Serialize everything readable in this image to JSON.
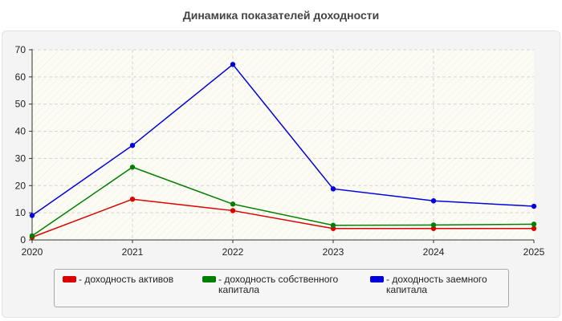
{
  "chart_data": {
    "type": "line",
    "title": "Динамика показателей доходности",
    "xlabel": "",
    "ylabel": "",
    "categories": [
      "2020",
      "2021",
      "2022",
      "2023",
      "2024",
      "2025"
    ],
    "ylim": [
      0,
      70
    ],
    "yticks": [
      0,
      10,
      20,
      30,
      40,
      50,
      60,
      70
    ],
    "grid": true,
    "legend_position": "bottom",
    "series": [
      {
        "name": "- доходность активов",
        "color": "#dd0000",
        "values": [
          1,
          15,
          10.8,
          4.2,
          4.2,
          4.2
        ]
      },
      {
        "name": "- доходность собственного капитала",
        "color": "#008000",
        "values": [
          1.5,
          26.8,
          13.2,
          5.4,
          5.5,
          5.8
        ]
      },
      {
        "name": "- доходность заемного капитала",
        "color": "#0000dd",
        "values": [
          9,
          34.8,
          64.6,
          18.8,
          14.4,
          12.4
        ]
      }
    ]
  }
}
